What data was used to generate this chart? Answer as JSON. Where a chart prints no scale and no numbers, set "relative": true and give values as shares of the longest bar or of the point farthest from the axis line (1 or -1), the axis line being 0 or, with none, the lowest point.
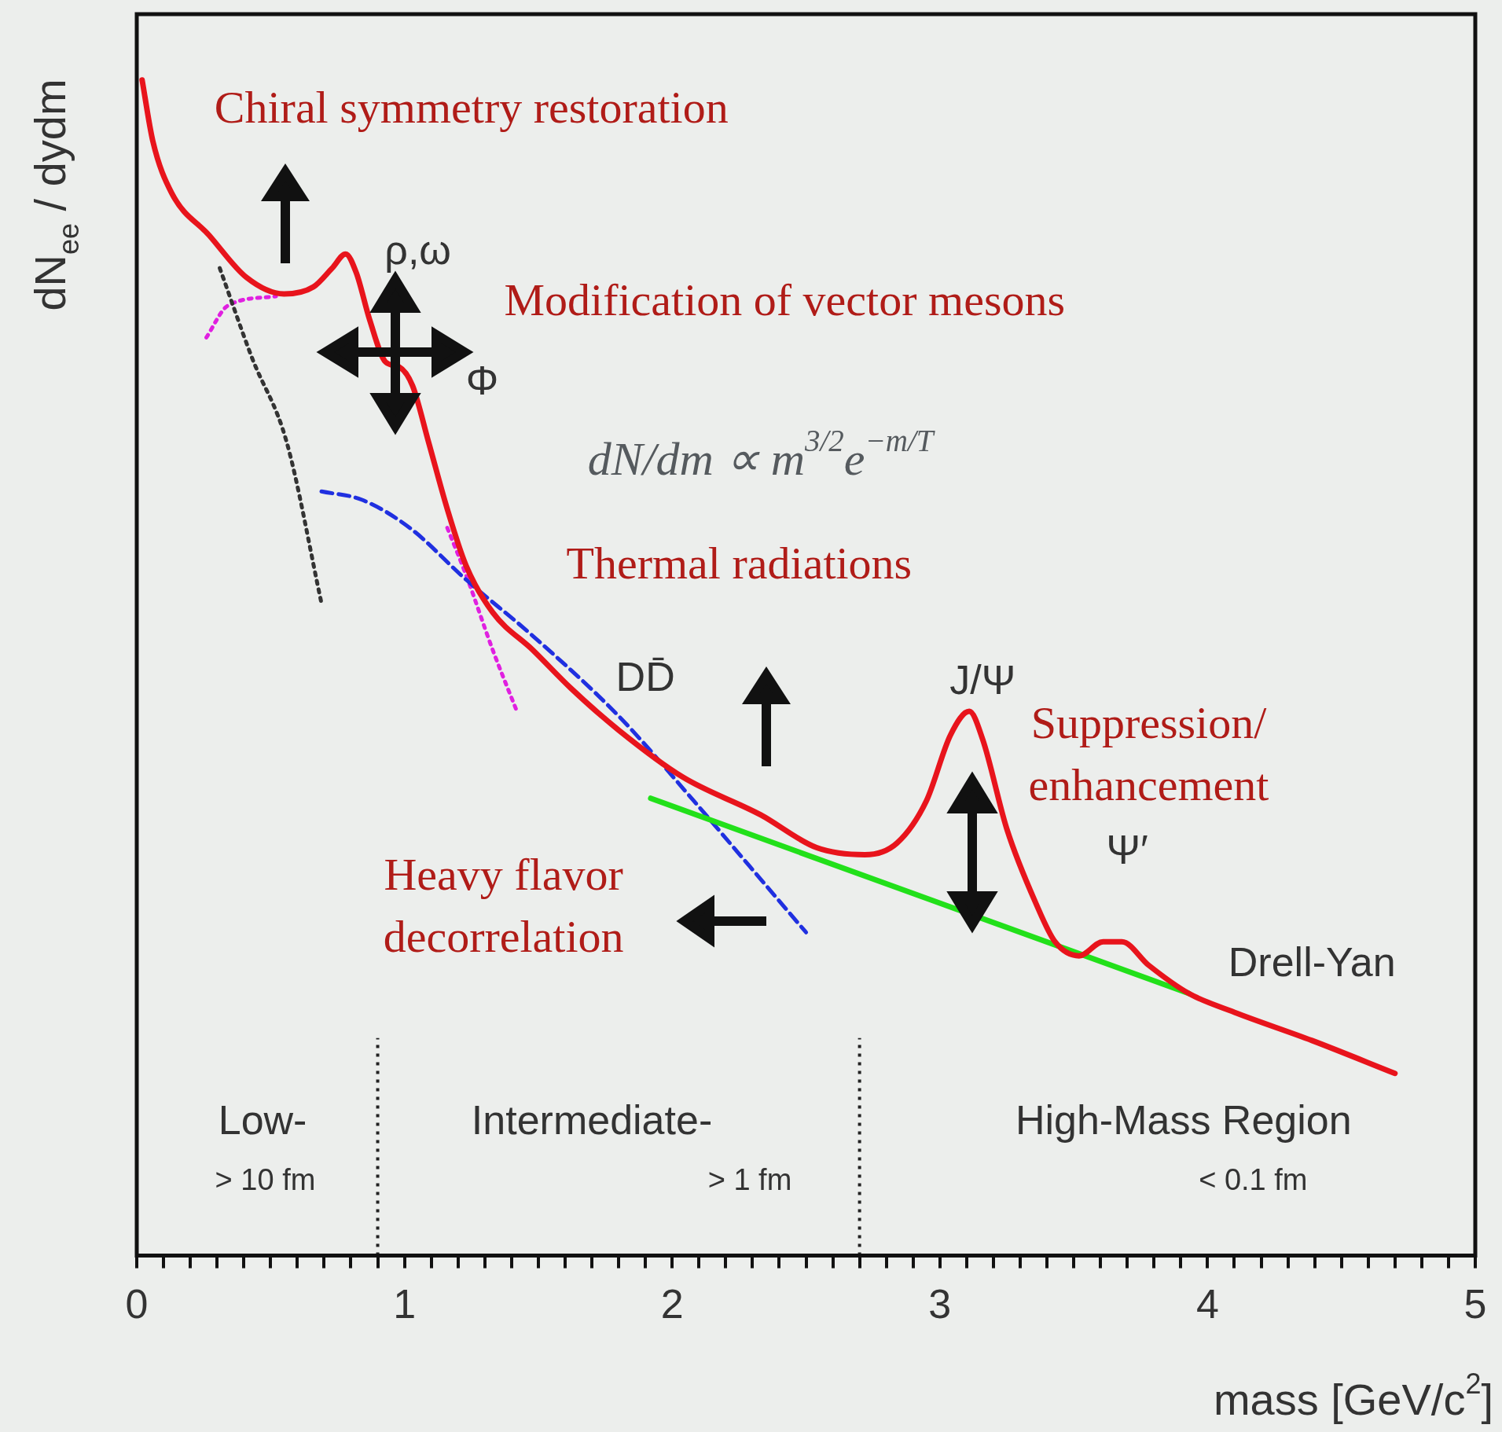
{
  "chart_data": {
    "type": "line",
    "relative": true,
    "xlabel": "mass [GeV/c$^{2}$]",
    "ylabel": "dN$_{ee}$ / dydm",
    "xlim": [
      0,
      5
    ],
    "xticks": [
      0,
      {
        "value": 0.1,
        "label": null
      },
      {
        "value": 0.2,
        "label": null
      },
      {
        "value": 0.3,
        "label": null
      },
      {
        "value": 0.4,
        "label": null
      },
      {
        "value": 0.5,
        "label": null
      },
      {
        "value": 0.6,
        "label": null
      },
      {
        "value": 0.7,
        "label": null
      },
      {
        "value": 0.8,
        "label": null
      },
      {
        "value": 0.9,
        "label": null
      },
      1,
      {
        "value": 1.1,
        "label": null
      },
      {
        "value": 1.2,
        "label": null
      },
      {
        "value": 1.3,
        "label": null
      },
      {
        "value": 1.4,
        "label": null
      },
      {
        "value": 1.5,
        "label": null
      },
      {
        "value": 1.6,
        "label": null
      },
      {
        "value": 1.7,
        "label": null
      },
      {
        "value": 1.8,
        "label": null
      },
      {
        "value": 1.9,
        "label": null
      },
      2,
      {
        "value": 2.1,
        "label": null
      },
      {
        "value": 2.2,
        "label": null
      },
      {
        "value": 2.3,
        "label": null
      },
      {
        "value": 2.4,
        "label": null
      },
      {
        "value": 2.5,
        "label": null
      },
      {
        "value": 2.6,
        "label": null
      },
      {
        "value": 2.7,
        "label": null
      },
      {
        "value": 2.8,
        "label": null
      },
      {
        "value": 2.9,
        "label": null
      },
      3,
      {
        "value": 3.1,
        "label": null
      },
      {
        "value": 3.2,
        "label": null
      },
      {
        "value": 3.3,
        "label": null
      },
      {
        "value": 3.4,
        "label": null
      },
      {
        "value": 3.5,
        "label": null
      },
      {
        "value": 3.6,
        "label": null
      },
      {
        "value": 3.7,
        "label": null
      },
      {
        "value": 3.8,
        "label": null
      },
      {
        "value": 3.9,
        "label": null
      },
      4,
      {
        "value": 4.1,
        "label": null
      },
      {
        "value": 4.2,
        "label": null
      },
      {
        "value": 4.3,
        "label": null
      },
      {
        "value": 4.4,
        "label": null
      },
      {
        "value": 4.5,
        "label": null
      },
      {
        "value": 4.6,
        "label": null
      },
      {
        "value": 4.7,
        "label": null
      },
      {
        "value": 4.8,
        "label": null
      },
      {
        "value": 4.9,
        "label": null
      },
      5
    ],
    "marker": "none",
    "legend": false,
    "grid": false,
    "series": [
      {
        "color": "#e8141c",
        "line_style": "solid",
        "x": [
          0.02,
          0.06,
          0.13,
          0.27,
          0.41,
          0.55,
          0.66,
          0.73,
          0.78,
          0.82,
          0.87,
          0.93,
          0.98,
          1.03,
          1.09,
          1.16,
          1.23,
          1.33,
          1.48,
          1.62,
          1.8,
          2.04,
          2.33,
          2.54,
          2.72,
          2.84,
          2.95,
          3.04,
          3.11,
          3.16,
          3.25,
          3.36,
          3.43,
          3.52,
          3.61,
          3.68,
          3.78,
          3.93,
          4.1,
          4.39,
          4.7
        ],
        "values": [
          1.0,
          0.948,
          0.904,
          0.868,
          0.832,
          0.818,
          0.824,
          0.84,
          0.852,
          0.836,
          0.796,
          0.76,
          0.756,
          0.74,
          0.692,
          0.635,
          0.587,
          0.547,
          0.515,
          0.483,
          0.447,
          0.407,
          0.375,
          0.347,
          0.341,
          0.351,
          0.387,
          0.443,
          0.463,
          0.439,
          0.363,
          0.299,
          0.267,
          0.255,
          0.267,
          0.267,
          0.247,
          0.223,
          0.207,
          0.183,
          0.155
        ]
      },
      {
        "color": "#22e01a",
        "line_style": "solid",
        "x": [
          1.92,
          3.93
        ],
        "values": [
          0.389,
          0.223
        ]
      },
      {
        "color": "#2030e0",
        "line_style": "dashed",
        "x": [
          0.69,
          0.84,
          1.02,
          1.23,
          1.48,
          1.8,
          2.08,
          2.29,
          2.5
        ],
        "values": [
          0.65,
          0.643,
          0.619,
          0.575,
          0.527,
          0.459,
          0.387,
          0.331,
          0.275
        ]
      },
      {
        "color": "#333333",
        "line_style": "dotted",
        "x": [
          0.31,
          0.43,
          0.56,
          0.69
        ],
        "values": [
          0.84,
          0.764,
          0.692,
          0.555
        ]
      },
      {
        "color": "#e020e0",
        "line_style": "dotted",
        "x": [
          0.26,
          0.34,
          0.52,
          1.0,
          1.16,
          1.23,
          1.33,
          1.42
        ],
        "values": [
          0.781,
          0.808,
          0.816,
          null,
          0.619,
          0.579,
          0.515,
          0.463
        ]
      }
    ],
    "ref_lines": [
      {
        "axis": "x",
        "value": 0.9,
        "line_style": "dotted",
        "color": "#222222"
      },
      {
        "axis": "x",
        "value": 2.7,
        "line_style": "dotted",
        "color": "#222222"
      }
    ],
    "annotations": [
      "Chiral symmetry restoration",
      "Modification of vector mesons",
      "Thermal radiations",
      "Suppression/\nenhancement",
      "Heavy flavor\ndecorrelation",
      "dN/dm ∝ m$^{3/2}$e$^{−m/T}$",
      "ρ,ω",
      "Φ",
      "DD̄",
      "J/Ψ",
      "Ψ′",
      "Drell-Yan",
      "Low-",
      "Intermediate-",
      "High-Mass Region",
      "> 10 fm",
      "> 1 fm",
      "< 0.1 fm"
    ]
  }
}
